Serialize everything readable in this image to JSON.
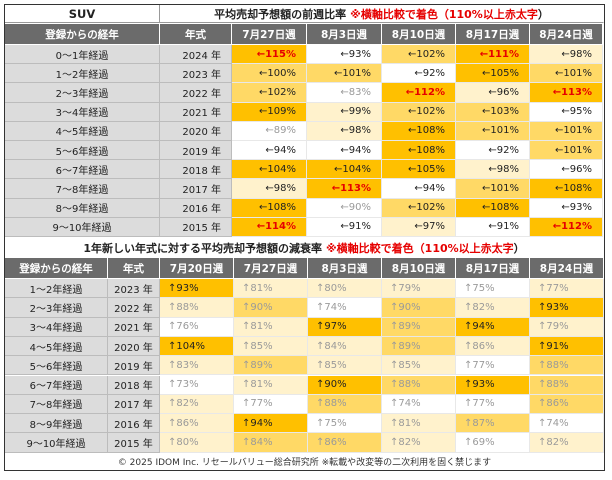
{
  "table1": {
    "suv_label": "SUV",
    "title_prefix": "平均売却予想額の前週比率",
    "title_note": "※横軸比較で着色（110%以上",
    "title_red": "赤太字",
    "title_close": "）",
    "col_header_age": "登録からの経年",
    "col_header_year": "年式",
    "weeks": [
      "7月27日週",
      "8月3日週",
      "8月10日週",
      "8月17日週",
      "8月24日週"
    ],
    "rows": [
      {
        "age": "0～1年経過",
        "year": "2024 年",
        "cells": [
          [
            "←115%",
            "#ffc000",
            1
          ],
          [
            "←93%",
            "#ffffff",
            0
          ],
          [
            "←102%",
            "#ffd966",
            0
          ],
          [
            "←111%",
            "#ffc000",
            1
          ],
          [
            "←98%",
            "#fff2cc",
            0
          ]
        ]
      },
      {
        "age": "1～2年経過",
        "year": "2023 年",
        "cells": [
          [
            "←100%",
            "#ffd966",
            0
          ],
          [
            "←101%",
            "#ffd966",
            0
          ],
          [
            "←92%",
            "#ffffff",
            0
          ],
          [
            "←105%",
            "#ffc000",
            0
          ],
          [
            "←101%",
            "#ffd966",
            0
          ]
        ]
      },
      {
        "age": "2～3年経過",
        "year": "2022 年",
        "cells": [
          [
            "←102%",
            "#ffd966",
            0
          ],
          [
            "←83%",
            "#ffffff",
            2
          ],
          [
            "←112%",
            "#ffc000",
            1
          ],
          [
            "←96%",
            "#fff2cc",
            0
          ],
          [
            "←113%",
            "#ffc000",
            1
          ]
        ]
      },
      {
        "age": "3～4年経過",
        "year": "2021 年",
        "cells": [
          [
            "←109%",
            "#ffc000",
            0
          ],
          [
            "←99%",
            "#fff2cc",
            0
          ],
          [
            "←102%",
            "#ffd966",
            0
          ],
          [
            "←103%",
            "#ffd966",
            0
          ],
          [
            "←95%",
            "#ffffff",
            0
          ]
        ]
      },
      {
        "age": "4～5年経過",
        "year": "2020 年",
        "cells": [
          [
            "←89%",
            "#ffffff",
            2
          ],
          [
            "←98%",
            "#fff2cc",
            0
          ],
          [
            "←108%",
            "#ffc000",
            0
          ],
          [
            "←101%",
            "#ffd966",
            0
          ],
          [
            "←101%",
            "#ffd966",
            0
          ]
        ]
      },
      {
        "age": "5～6年経過",
        "year": "2019 年",
        "cells": [
          [
            "←94%",
            "#ffffff",
            0
          ],
          [
            "←94%",
            "#ffffff",
            0
          ],
          [
            "←108%",
            "#ffc000",
            0
          ],
          [
            "←92%",
            "#ffffff",
            0
          ],
          [
            "←101%",
            "#ffd966",
            0
          ]
        ]
      },
      {
        "age": "6～7年経過",
        "year": "2018 年",
        "cells": [
          [
            "←104%",
            "#ffc000",
            0
          ],
          [
            "←104%",
            "#ffc000",
            0
          ],
          [
            "←105%",
            "#ffc000",
            0
          ],
          [
            "←98%",
            "#fff2cc",
            0
          ],
          [
            "←96%",
            "#ffffff",
            0
          ]
        ]
      },
      {
        "age": "7～8年経過",
        "year": "2017 年",
        "cells": [
          [
            "←98%",
            "#fff2cc",
            0
          ],
          [
            "←113%",
            "#ffc000",
            1
          ],
          [
            "←94%",
            "#ffffff",
            0
          ],
          [
            "←101%",
            "#ffd966",
            0
          ],
          [
            "←108%",
            "#ffc000",
            0
          ]
        ]
      },
      {
        "age": "8～9年経過",
        "year": "2016 年",
        "cells": [
          [
            "←108%",
            "#ffc000",
            0
          ],
          [
            "←90%",
            "#ffffff",
            2
          ],
          [
            "←102%",
            "#ffd966",
            0
          ],
          [
            "←108%",
            "#ffc000",
            0
          ],
          [
            "←93%",
            "#ffffff",
            0
          ]
        ]
      },
      {
        "age": "9～10年経過",
        "year": "2015 年",
        "cells": [
          [
            "←114%",
            "#ffc000",
            1
          ],
          [
            "←91%",
            "#ffffff",
            0
          ],
          [
            "←97%",
            "#fff2cc",
            0
          ],
          [
            "←91%",
            "#ffffff",
            0
          ],
          [
            "←112%",
            "#ffc000",
            1
          ]
        ]
      }
    ]
  },
  "table2": {
    "title_prefix": "1年新しい年式に対する平均売却予想額の減衰率",
    "title_note": "※横軸比較で着色（110%以上",
    "title_red": "赤太字",
    "title_close": "）",
    "col_header_age": "登録からの経年",
    "col_header_year": "年式",
    "weeks": [
      "7月20日週",
      "7月27日週",
      "8月3日週",
      "8月10日週",
      "8月17日週",
      "8月24日週"
    ],
    "rows": [
      {
        "age": "1～2年経過",
        "year": "2023 年",
        "cells": [
          [
            "↑93%",
            "#ffc000",
            0
          ],
          [
            "↑81%",
            "#fff2cc",
            2
          ],
          [
            "↑80%",
            "#fff2cc",
            2
          ],
          [
            "↑79%",
            "#fff2cc",
            2
          ],
          [
            "↑75%",
            "#ffffff",
            2
          ],
          [
            "↑77%",
            "#fff2cc",
            2
          ]
        ]
      },
      {
        "age": "2～3年経過",
        "year": "2022 年",
        "cells": [
          [
            "↑88%",
            "#fff2cc",
            2
          ],
          [
            "↑90%",
            "#ffd966",
            2
          ],
          [
            "↑74%",
            "#ffffff",
            2
          ],
          [
            "↑90%",
            "#ffd966",
            2
          ],
          [
            "↑82%",
            "#fff2cc",
            2
          ],
          [
            "↑93%",
            "#ffc000",
            0
          ]
        ]
      },
      {
        "age": "3～4年経過",
        "year": "2021 年",
        "cells": [
          [
            "↑76%",
            "#ffffff",
            2
          ],
          [
            "↑81%",
            "#fff2cc",
            2
          ],
          [
            "↑97%",
            "#ffc000",
            0
          ],
          [
            "↑89%",
            "#ffd966",
            2
          ],
          [
            "↑94%",
            "#ffc000",
            0
          ],
          [
            "↑79%",
            "#fff2cc",
            2
          ]
        ]
      },
      {
        "age": "4～5年経過",
        "year": "2020 年",
        "cells": [
          [
            "↑104%",
            "#ffc000",
            0
          ],
          [
            "↑85%",
            "#fff2cc",
            2
          ],
          [
            "↑84%",
            "#fff2cc",
            2
          ],
          [
            "↑89%",
            "#ffd966",
            2
          ],
          [
            "↑86%",
            "#fff2cc",
            2
          ],
          [
            "↑91%",
            "#ffc000",
            0
          ]
        ]
      },
      {
        "age": "5～6年経過",
        "year": "2019 年",
        "cells": [
          [
            "↑83%",
            "#fff2cc",
            2
          ],
          [
            "↑89%",
            "#ffd966",
            2
          ],
          [
            "↑85%",
            "#fff2cc",
            2
          ],
          [
            "↑85%",
            "#fff2cc",
            2
          ],
          [
            "↑77%",
            "#ffffff",
            2
          ],
          [
            "↑88%",
            "#ffd966",
            2
          ]
        ]
      },
      {
        "age": "6～7年経過",
        "year": "2018 年",
        "cells": [
          [
            "↑73%",
            "#ffffff",
            2
          ],
          [
            "↑81%",
            "#fff2cc",
            2
          ],
          [
            "↑90%",
            "#ffc000",
            0
          ],
          [
            "↑88%",
            "#ffd966",
            2
          ],
          [
            "↑93%",
            "#ffc000",
            0
          ],
          [
            "↑88%",
            "#ffd966",
            2
          ]
        ]
      },
      {
        "age": "7～8年経過",
        "year": "2017 年",
        "cells": [
          [
            "↑82%",
            "#fff2cc",
            2
          ],
          [
            "↑77%",
            "#ffffff",
            2
          ],
          [
            "↑88%",
            "#ffd966",
            2
          ],
          [
            "↑74%",
            "#ffffff",
            2
          ],
          [
            "↑77%",
            "#ffffff",
            2
          ],
          [
            "↑86%",
            "#ffd966",
            2
          ]
        ]
      },
      {
        "age": "8～9年経過",
        "year": "2016 年",
        "cells": [
          [
            "↑86%",
            "#fff2cc",
            2
          ],
          [
            "↑94%",
            "#ffc000",
            0
          ],
          [
            "↑75%",
            "#ffffff",
            2
          ],
          [
            "↑81%",
            "#fff2cc",
            2
          ],
          [
            "↑87%",
            "#ffd966",
            2
          ],
          [
            "↑74%",
            "#ffffff",
            2
          ]
        ]
      },
      {
        "age": "9～10年経過",
        "year": "2015 年",
        "cells": [
          [
            "↑80%",
            "#fff2cc",
            2
          ],
          [
            "↑84%",
            "#ffd966",
            2
          ],
          [
            "↑86%",
            "#ffd966",
            2
          ],
          [
            "↑82%",
            "#fff2cc",
            2
          ],
          [
            "↑69%",
            "#ffffff",
            2
          ],
          [
            "↑82%",
            "#fff2cc",
            2
          ]
        ]
      }
    ]
  },
  "footer": "© 2025 IDOM Inc. リセールバリュー総合研究所 ※転載や改変等の二次利用を固く禁じます",
  "colors": {
    "strong": "#ffc000",
    "medium": "#ffd966",
    "light": "#fff2cc",
    "none": "#ffffff",
    "header": "#6b6b6b",
    "label": "#dcdcdc",
    "emphasis": "#e60000"
  }
}
